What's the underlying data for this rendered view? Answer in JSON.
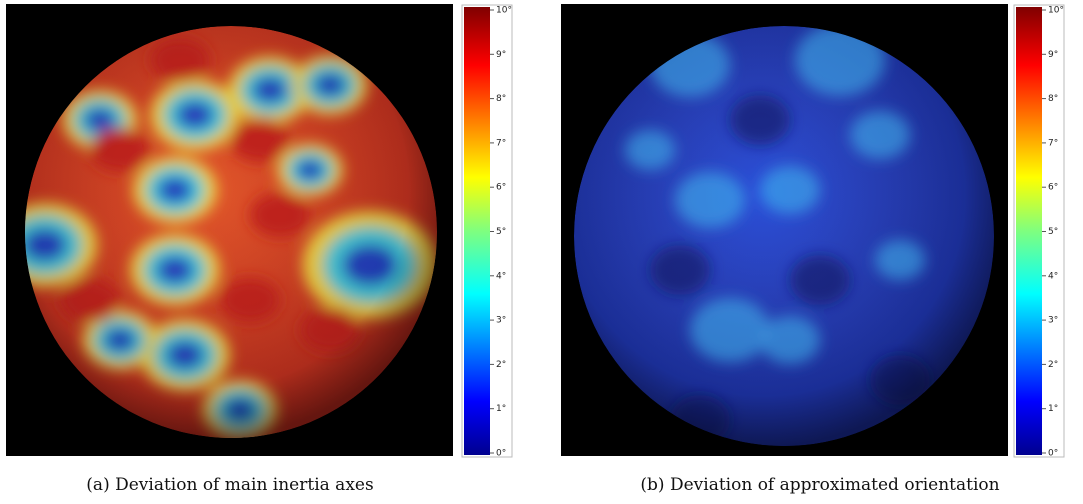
{
  "panels": [
    {
      "caption": "(a) Deviation of main inertia axes",
      "colorbar": {
        "ticks": [
          "0°",
          "1°",
          "2°",
          "3°",
          "4°",
          "5°",
          "6°",
          "7°",
          "8°",
          "9°",
          "10°"
        ]
      }
    },
    {
      "caption": "(b) Deviation of approximated orientation",
      "colorbar": {
        "ticks": [
          "0°",
          "1°",
          "2°",
          "3°",
          "4°",
          "5°",
          "6°",
          "7°",
          "8°",
          "9°",
          "10°"
        ]
      }
    }
  ]
}
